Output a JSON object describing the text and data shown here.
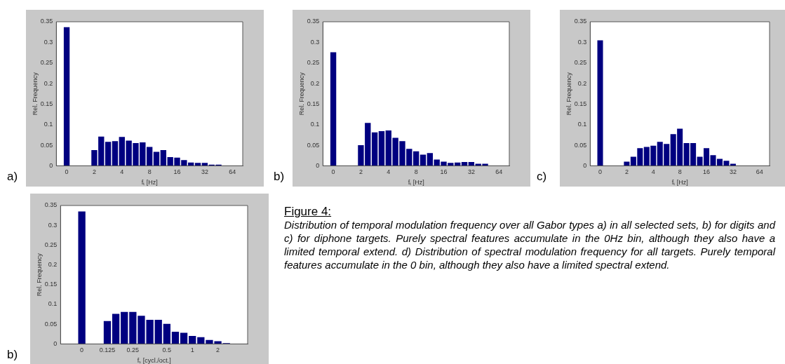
{
  "chart_data": [
    {
      "type": "bar",
      "annotations": [
        "a)"
      ],
      "xlabel": "fₜ [Hz]",
      "ylabel": "Rel. Frequency",
      "color": "#000080",
      "ylim": [
        0,
        0.35
      ],
      "yticks": [
        0,
        0.05,
        0.1,
        0.15,
        0.2,
        0.25,
        0.3,
        0.35
      ],
      "grid": false,
      "categories": [
        null,
        "0",
        null,
        null,
        null,
        "2",
        null,
        null,
        null,
        "4",
        null,
        null,
        null,
        "8",
        null,
        null,
        null,
        "16",
        null,
        null,
        null,
        "32",
        null,
        null,
        null,
        "64",
        null
      ],
      "values": [
        null,
        0.337,
        null,
        null,
        null,
        0.038,
        0.071,
        0.058,
        0.06,
        0.07,
        0.061,
        0.055,
        0.057,
        0.046,
        0.034,
        0.038,
        0.021,
        0.02,
        0.014,
        0.008,
        0.007,
        0.007,
        0.003,
        0.003,
        null,
        null,
        null
      ]
    },
    {
      "type": "bar",
      "annotations": [
        "b)"
      ],
      "xlabel": "fₜ [Hz]",
      "ylabel": "Rel. Frequency",
      "color": "#000080",
      "ylim": [
        0,
        0.35
      ],
      "yticks": [
        0,
        0.05,
        0.1,
        0.15,
        0.2,
        0.25,
        0.3,
        0.35
      ],
      "grid": false,
      "categories": [
        null,
        "0",
        null,
        null,
        null,
        "2",
        null,
        null,
        null,
        "4",
        null,
        null,
        null,
        "8",
        null,
        null,
        null,
        "16",
        null,
        null,
        null,
        "32",
        null,
        null,
        null,
        "64",
        null
      ],
      "values": [
        null,
        0.276,
        null,
        null,
        null,
        0.05,
        0.104,
        0.081,
        0.084,
        0.086,
        0.068,
        0.06,
        0.041,
        0.035,
        0.027,
        0.031,
        0.015,
        0.01,
        0.007,
        0.008,
        0.009,
        0.009,
        0.005,
        0.005,
        null,
        null,
        null
      ]
    },
    {
      "type": "bar",
      "annotations": [
        "c)"
      ],
      "xlabel": "fₜ [Hz]",
      "ylabel": "Rel. Frequency",
      "color": "#000080",
      "ylim": [
        0,
        0.35
      ],
      "yticks": [
        0,
        0.05,
        0.1,
        0.15,
        0.2,
        0.25,
        0.3,
        0.35
      ],
      "grid": false,
      "categories": [
        null,
        "0",
        null,
        null,
        null,
        "2",
        null,
        null,
        null,
        "4",
        null,
        null,
        null,
        "8",
        null,
        null,
        null,
        "16",
        null,
        null,
        null,
        "32",
        null,
        null,
        null,
        "64",
        null
      ],
      "values": [
        null,
        0.305,
        null,
        null,
        null,
        0.01,
        0.022,
        0.043,
        0.046,
        0.049,
        0.058,
        0.053,
        0.077,
        0.09,
        0.055,
        0.055,
        0.022,
        0.043,
        0.026,
        0.017,
        0.012,
        0.005,
        null,
        null,
        null,
        null,
        null
      ]
    },
    {
      "type": "bar",
      "annotations": [
        "b)"
      ],
      "xlabel": "fₛ [cycl./oct.]",
      "ylabel": "Rel. Frequency",
      "color": "#000080",
      "ylim": [
        0,
        0.35
      ],
      "yticks": [
        0,
        0.05,
        0.1,
        0.15,
        0.2,
        0.25,
        0.3,
        0.35
      ],
      "grid": false,
      "categories": [
        null,
        null,
        "0",
        null,
        null,
        "0.125",
        null,
        null,
        "0.25",
        null,
        null,
        null,
        "0.5",
        null,
        null,
        "1",
        null,
        null,
        "2",
        null,
        null,
        null
      ],
      "values": [
        null,
        null,
        0.335,
        null,
        null,
        0.058,
        0.076,
        0.081,
        0.081,
        0.071,
        0.061,
        0.061,
        0.051,
        0.031,
        0.028,
        0.02,
        0.017,
        0.01,
        0.007,
        0.002,
        null,
        null
      ]
    },
    {
      "type": "other",
      "title": "Figure 4:",
      "annotations": [
        "Distribution of temporal modulation frequency over all Gabor types a) in all selected sets, b) for digits and c) for diphone targets. Purely spectral features accumulate in the 0Hz bin, although they also have a limited temporal extend. d) Distribution of spectral modulation frequency for all targets. Purely temporal features accumulate in the 0 bin, although they also have a limited spectral extend."
      ]
    }
  ]
}
